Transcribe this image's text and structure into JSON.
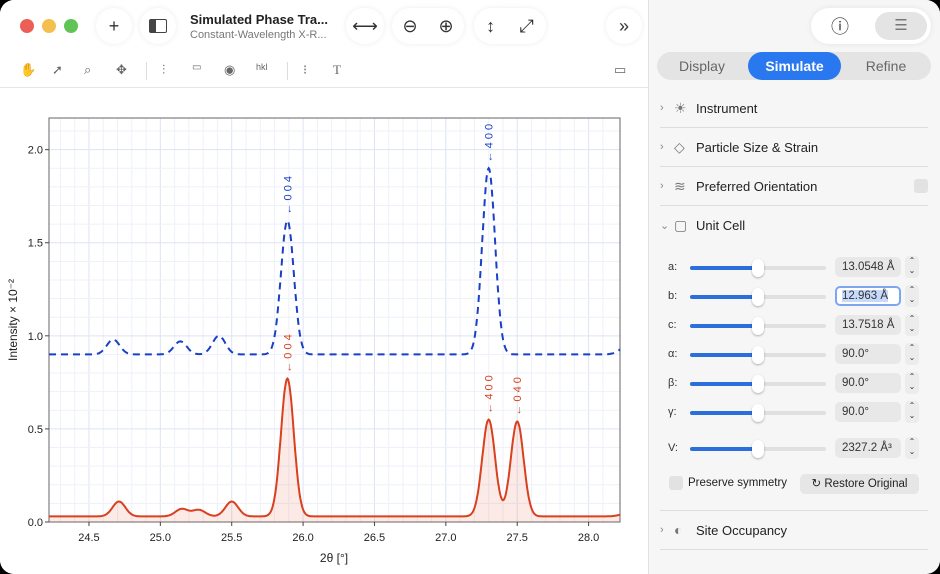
{
  "window": {
    "title": "Simulated Phase Tra...",
    "subtitle": "Constant-Wavelength X-R..."
  },
  "toolbar": {
    "add": "+",
    "sidebar": "sidebar-icon",
    "fit_width": "⟷",
    "zoom_out": "zoom-out-icon",
    "zoom_in": "zoom-in-icon",
    "fit_height": "fit-height-icon",
    "fit_all": "fit-all-icon",
    "more": "»"
  },
  "tools": [
    "hand-icon",
    "arrow-icon",
    "magnifier-icon",
    "move-icon",
    "cursor-line-icon",
    "ruler-icon",
    "peak-icon",
    "hkl-icon",
    "list-icon",
    "text-icon",
    "panel-icon"
  ],
  "inspector": {
    "info": "ⓘ",
    "settings": "sliders-icon",
    "tabs": [
      {
        "label": "Display",
        "active": false
      },
      {
        "label": "Simulate",
        "active": true
      },
      {
        "label": "Refine",
        "active": false
      }
    ],
    "sections": [
      {
        "label": "Instrument",
        "icon": "sun-icon",
        "expanded": false
      },
      {
        "label": "Particle Size & Strain",
        "icon": "crystal-icon",
        "expanded": false
      },
      {
        "label": "Preferred Orientation",
        "icon": "lines-icon",
        "expanded": false,
        "checkbox": false
      },
      {
        "label": "Unit Cell",
        "icon": "cube-icon",
        "expanded": true
      },
      {
        "label": "Site Occupancy",
        "icon": "half-circle-icon",
        "expanded": false
      }
    ],
    "unit_cell": [
      {
        "label": "a:",
        "value": "13.0548 Å",
        "slider": 0.5
      },
      {
        "label": "b:",
        "value": "12.963 Å",
        "slider": 0.5,
        "focused": true
      },
      {
        "label": "c:",
        "value": "13.7518 Å",
        "slider": 0.5
      },
      {
        "label": "α:",
        "value": "90.0°",
        "slider": 0.5
      },
      {
        "label": "β:",
        "value": "90.0°",
        "slider": 0.5
      },
      {
        "label": "γ:",
        "value": "90.0°",
        "slider": 0.5
      },
      {
        "label": "V:",
        "value": "2327.2 Å³",
        "slider": 0.5
      }
    ],
    "preserve_symmetry": {
      "label": "Preserve symmetry",
      "checked": false
    },
    "restore": "↻ Restore Original"
  },
  "chart_data": {
    "type": "line",
    "xlabel": "2θ [°]",
    "ylabel": "Intensity × 10⁻²",
    "xlim": [
      24.22,
      28.22
    ],
    "ylim": [
      0,
      2.17
    ],
    "xticks": [
      "24.5",
      "25.0",
      "25.5",
      "26.0",
      "26.5",
      "27.0",
      "27.5",
      "28.0"
    ],
    "yticks": [
      "0.0",
      "0.5",
      "1.0",
      "1.5",
      "2.0"
    ],
    "grid": true,
    "series": [
      {
        "style": "dashed",
        "color": "#1a3fc8",
        "baseline": 0.9,
        "peaks": [
          [
            24.67,
            0.98
          ],
          [
            25.14,
            0.97
          ],
          [
            25.41,
            1.0
          ],
          [
            25.89,
            1.62
          ],
          [
            27.3,
            1.9
          ]
        ]
      },
      {
        "style": "solid-filled",
        "color": "#d8401e",
        "baseline": 0.03,
        "peaks": [
          [
            24.71,
            0.11
          ],
          [
            25.15,
            0.07
          ],
          [
            25.27,
            0.065
          ],
          [
            25.5,
            0.11
          ],
          [
            25.89,
            0.77
          ],
          [
            27.3,
            0.55
          ],
          [
            27.5,
            0.54
          ]
        ]
      }
    ],
    "annotations": [
      {
        "text": "← 0 0 4",
        "x": 25.89,
        "y": 1.63,
        "color": "#1a3fc8"
      },
      {
        "text": "← 4 0 0",
        "x": 27.3,
        "y": 1.91,
        "color": "#1a3fc8"
      },
      {
        "text": "← 0 0 4",
        "x": 25.89,
        "y": 0.78,
        "color": "#d8401e"
      },
      {
        "text": "← 4 0 0",
        "x": 27.3,
        "y": 0.56,
        "color": "#d8401e"
      },
      {
        "text": "← 0 4 0",
        "x": 27.5,
        "y": 0.55,
        "color": "#d8401e"
      }
    ]
  }
}
